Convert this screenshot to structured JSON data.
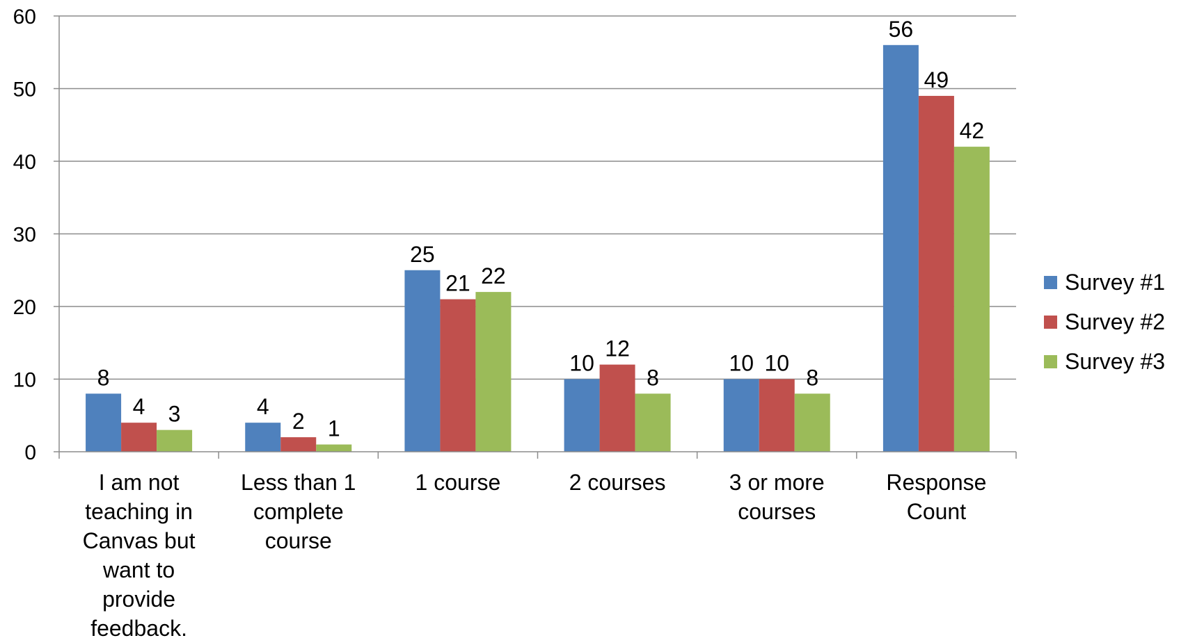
{
  "chart_data": {
    "type": "bar",
    "categories": [
      [
        "I am not",
        "teaching in",
        "Canvas but",
        "want to",
        "provide",
        "feedback."
      ],
      [
        "Less than 1",
        "complete",
        "course"
      ],
      [
        "1 course"
      ],
      [
        "2 courses"
      ],
      [
        "3 or more",
        "courses"
      ],
      [
        "Response",
        "Count"
      ]
    ],
    "series": [
      {
        "name": "Survey #1",
        "color": "#4F81BD",
        "values": [
          8,
          4,
          25,
          10,
          10,
          56
        ]
      },
      {
        "name": "Survey #2",
        "color": "#C0504D",
        "values": [
          4,
          2,
          21,
          12,
          10,
          49
        ]
      },
      {
        "name": "Survey #3",
        "color": "#9BBB59",
        "values": [
          3,
          1,
          22,
          8,
          8,
          42
        ]
      }
    ],
    "yticks": [
      "0",
      "10",
      "20",
      "30",
      "40",
      "50",
      "60"
    ],
    "ylim": [
      0,
      60
    ],
    "grid": true,
    "legend": "right",
    "title": "",
    "xlabel": "",
    "ylabel": ""
  }
}
